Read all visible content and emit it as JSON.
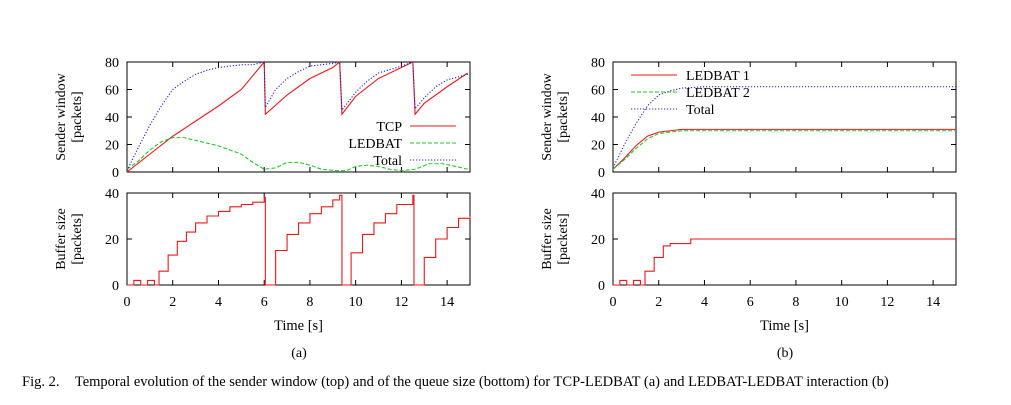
{
  "caption": {
    "label": "Fig. 2.",
    "text": "Temporal evolution of the sender window (top) and of the queue size (bottom) for TCP-LEDBAT (a) and LEDBAT-LEDBAT interaction (b)"
  },
  "colors": {
    "tcp": "#e8191d",
    "ledbat": "#23c52a",
    "total": "#1d20d6",
    "ledbat1": "#e8191d",
    "ledbat2": "#23c52a",
    "buffer": "#e8191d"
  },
  "chart_data": [
    {
      "type": "line",
      "panel": "a-top",
      "ylabel": [
        "Sender window",
        "[packets]"
      ],
      "xlim": [
        0,
        15
      ],
      "ylim": [
        0,
        80
      ],
      "yticks": [
        "0",
        "20",
        "40",
        "60",
        "80"
      ],
      "legend_position": "bottom-right",
      "series": [
        {
          "name": "TCP",
          "style": "solid",
          "points": [
            [
              0,
              0
            ],
            [
              1,
              13
            ],
            [
              2,
              26
            ],
            [
              3,
              37
            ],
            [
              4,
              48
            ],
            [
              5,
              60
            ],
            [
              6,
              80
            ],
            [
              6.05,
              42
            ],
            [
              7,
              56
            ],
            [
              8,
              68
            ],
            [
              9,
              76
            ],
            [
              9.3,
              80
            ],
            [
              9.4,
              42
            ],
            [
              10,
              55
            ],
            [
              11,
              68
            ],
            [
              12,
              76
            ],
            [
              12.5,
              80
            ],
            [
              12.6,
              42
            ],
            [
              13,
              50
            ],
            [
              14,
              62
            ],
            [
              14.9,
              72
            ]
          ]
        },
        {
          "name": "LEDBAT",
          "style": "dashed",
          "points": [
            [
              0,
              2
            ],
            [
              0.5,
              8
            ],
            [
              1,
              16
            ],
            [
              1.5,
              22
            ],
            [
              2,
              25
            ],
            [
              2.5,
              25
            ],
            [
              3,
              23
            ],
            [
              3.5,
              21
            ],
            [
              4,
              19
            ],
            [
              4.5,
              16
            ],
            [
              5,
              13
            ],
            [
              5.5,
              7
            ],
            [
              6,
              2
            ],
            [
              6.5,
              3
            ],
            [
              7,
              7
            ],
            [
              7.5,
              7
            ],
            [
              8,
              5
            ],
            [
              8.5,
              2
            ],
            [
              9.2,
              1
            ],
            [
              9.6,
              1
            ],
            [
              10,
              4
            ],
            [
              10.5,
              5
            ],
            [
              11,
              4
            ],
            [
              11.5,
              2
            ],
            [
              12,
              1
            ],
            [
              12.6,
              2
            ],
            [
              13.2,
              6
            ],
            [
              13.8,
              6
            ],
            [
              14.4,
              4
            ],
            [
              14.9,
              2
            ]
          ]
        },
        {
          "name": "Total",
          "style": "dotted",
          "points": [
            [
              0,
              1
            ],
            [
              0.5,
              18
            ],
            [
              1,
              34
            ],
            [
              1.5,
              48
            ],
            [
              2,
              60
            ],
            [
              2.5,
              66
            ],
            [
              3,
              71
            ],
            [
              3.5,
              74
            ],
            [
              4,
              76
            ],
            [
              4.5,
              77
            ],
            [
              5,
              78
            ],
            [
              5.5,
              78
            ],
            [
              6,
              80
            ],
            [
              6.05,
              47
            ],
            [
              6.5,
              60
            ],
            [
              7,
              68
            ],
            [
              7.5,
              73
            ],
            [
              8,
              77
            ],
            [
              9,
              79
            ],
            [
              9.3,
              80
            ],
            [
              9.4,
              45
            ],
            [
              10,
              58
            ],
            [
              10.5,
              66
            ],
            [
              11,
              72
            ],
            [
              12,
              77
            ],
            [
              12.5,
              80
            ],
            [
              12.6,
              46
            ],
            [
              13,
              54
            ],
            [
              13.5,
              62
            ],
            [
              14,
              67
            ],
            [
              14.9,
              71
            ]
          ]
        }
      ]
    },
    {
      "type": "line",
      "panel": "a-bottom",
      "ylabel": [
        "Buffer size",
        "[packets]"
      ],
      "xlim": [
        0,
        15
      ],
      "ylim": [
        0,
        40
      ],
      "yticks": [
        "0",
        "20",
        "40"
      ],
      "xticks": [
        "0",
        "2",
        "4",
        "6",
        "8",
        "10",
        "12",
        "14"
      ],
      "xlabel": "Time [s]",
      "series": [
        {
          "name": "",
          "style": "step",
          "points": [
            [
              0,
              0
            ],
            [
              0.3,
              2
            ],
            [
              0.6,
              0
            ],
            [
              0.9,
              2
            ],
            [
              1.2,
              0
            ],
            [
              1.4,
              6
            ],
            [
              1.8,
              13
            ],
            [
              2.2,
              19
            ],
            [
              2.6,
              23
            ],
            [
              3,
              27
            ],
            [
              3.5,
              30
            ],
            [
              4,
              32
            ],
            [
              4.5,
              34
            ],
            [
              5,
              35
            ],
            [
              5.5,
              36
            ],
            [
              6,
              38
            ],
            [
              6.05,
              0
            ],
            [
              6.5,
              15
            ],
            [
              7,
              22
            ],
            [
              7.5,
              27
            ],
            [
              8,
              31
            ],
            [
              8.5,
              34
            ],
            [
              9,
              37
            ],
            [
              9.3,
              39
            ],
            [
              9.4,
              0
            ],
            [
              9.8,
              14
            ],
            [
              10.3,
              22
            ],
            [
              10.8,
              27
            ],
            [
              11.3,
              31
            ],
            [
              11.8,
              35
            ],
            [
              12.5,
              39
            ],
            [
              12.55,
              0
            ],
            [
              13,
              12
            ],
            [
              13.5,
              20
            ],
            [
              14,
              25
            ],
            [
              14.5,
              29
            ],
            [
              15,
              30
            ]
          ]
        }
      ]
    },
    {
      "type": "line",
      "panel": "b-top",
      "ylabel": [
        "Sender window",
        "[packets]"
      ],
      "xlim": [
        0,
        15
      ],
      "ylim": [
        0,
        80
      ],
      "yticks": [
        "0",
        "20",
        "40",
        "60",
        "80"
      ],
      "legend_position": "top-left",
      "series": [
        {
          "name": "LEDBAT 1",
          "style": "solid",
          "points": [
            [
              0,
              2
            ],
            [
              0.5,
              10
            ],
            [
              1,
              19
            ],
            [
              1.5,
              26
            ],
            [
              2,
              29
            ],
            [
              2.5,
              30
            ],
            [
              3,
              31
            ],
            [
              4,
              31
            ],
            [
              6,
              31
            ],
            [
              8,
              31
            ],
            [
              10,
              31
            ],
            [
              12,
              31
            ],
            [
              14,
              31
            ],
            [
              15,
              31
            ]
          ]
        },
        {
          "name": "LEDBAT 2",
          "style": "dashed",
          "points": [
            [
              0,
              2
            ],
            [
              0.5,
              9
            ],
            [
              1,
              17
            ],
            [
              1.5,
              24
            ],
            [
              2,
              28
            ],
            [
              2.5,
              29
            ],
            [
              3,
              30
            ],
            [
              4,
              30
            ],
            [
              6,
              30
            ],
            [
              8,
              30
            ],
            [
              10,
              30
            ],
            [
              12,
              30
            ],
            [
              14,
              30
            ],
            [
              15,
              30
            ]
          ]
        },
        {
          "name": "Total",
          "style": "dotted",
          "points": [
            [
              0,
              3
            ],
            [
              0.5,
              20
            ],
            [
              1,
              35
            ],
            [
              1.5,
              48
            ],
            [
              2,
              56
            ],
            [
              2.5,
              59
            ],
            [
              3,
              61
            ],
            [
              4,
              62
            ],
            [
              6,
              62
            ],
            [
              8,
              62
            ],
            [
              10,
              62
            ],
            [
              12,
              62
            ],
            [
              14,
              62
            ],
            [
              15,
              62
            ]
          ]
        }
      ]
    },
    {
      "type": "line",
      "panel": "b-bottom",
      "ylabel": [
        "Buffer size",
        "[packets]"
      ],
      "xlim": [
        0,
        15
      ],
      "ylim": [
        0,
        40
      ],
      "yticks": [
        "0",
        "20",
        "40"
      ],
      "xticks": [
        "0",
        "2",
        "4",
        "6",
        "8",
        "10",
        "12",
        "14"
      ],
      "xlabel": "Time [s]",
      "series": [
        {
          "name": "",
          "style": "step",
          "points": [
            [
              0,
              0
            ],
            [
              0.3,
              2
            ],
            [
              0.6,
              0
            ],
            [
              0.9,
              2
            ],
            [
              1.2,
              0
            ],
            [
              1.4,
              6
            ],
            [
              1.8,
              12
            ],
            [
              2.2,
              17
            ],
            [
              2.5,
              18
            ],
            [
              3.3,
              18
            ],
            [
              3.4,
              20
            ],
            [
              15,
              20
            ]
          ]
        }
      ]
    }
  ],
  "subfigures": [
    "(a)",
    "(b)"
  ]
}
